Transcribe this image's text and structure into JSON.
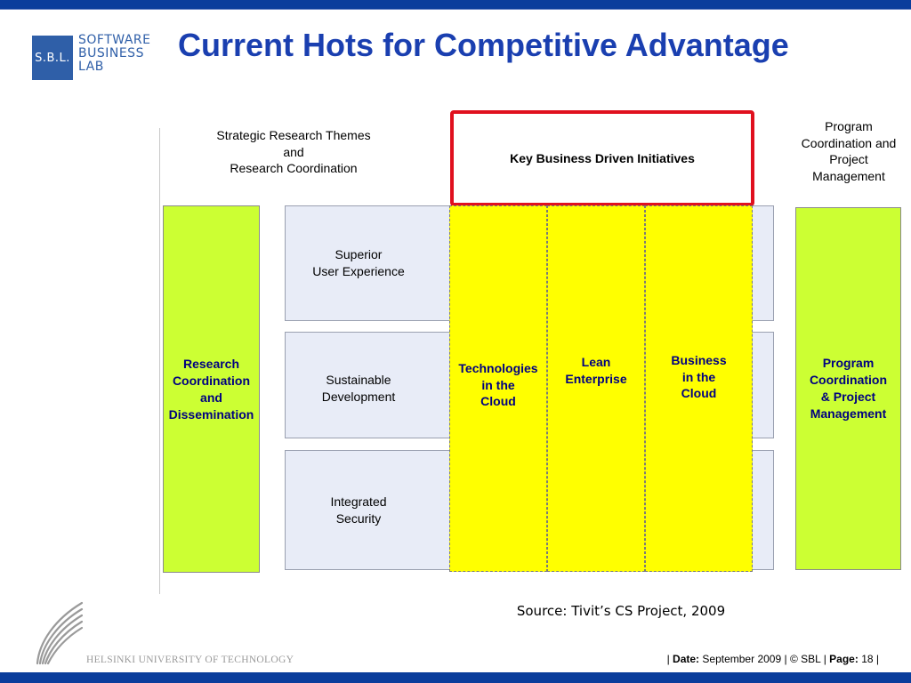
{
  "colors": {
    "bar_blue": "#0a3d9c",
    "title_blue": "#1a3fb0",
    "green": "#ccff33",
    "yellow": "#ffff00",
    "highlight_red": "#e0101e",
    "row_fill": "#e8ecf7"
  },
  "logo": {
    "abbr": "S.B.L.",
    "words": [
      "SOFTWARE",
      "BUSINESS",
      "LAB"
    ]
  },
  "title": "Current Hots for Competitive Advantage",
  "headings": {
    "left": [
      "Strategic Research Themes",
      "and",
      "Research Coordination"
    ],
    "center": "Key Business Driven Initiatives",
    "right": [
      "Program",
      "Coordination and",
      "Project",
      "Management"
    ]
  },
  "left_column": [
    "Research",
    "Coordination",
    "and",
    "Dissemination"
  ],
  "right_column": [
    "Program",
    "Coordination",
    "& Project",
    "Management"
  ],
  "themes": [
    [
      "Superior",
      "User Experience"
    ],
    [
      "Sustainable",
      "Development"
    ],
    [
      "Integrated",
      "Security"
    ]
  ],
  "initiatives": [
    [
      "Technologies",
      "in the",
      "Cloud"
    ],
    [
      "Lean",
      "Enterprise"
    ],
    [
      "Business",
      "in the",
      "Cloud"
    ]
  ],
  "source": "Source: Tivit’s CS Project, 2009",
  "university": "HELSINKI UNIVERSITY OF TECHNOLOGY",
  "footer": {
    "date_label": "Date:",
    "date_value": "September 2009",
    "copyright": "© SBL",
    "page_label": "Page:",
    "page_value": "18"
  }
}
